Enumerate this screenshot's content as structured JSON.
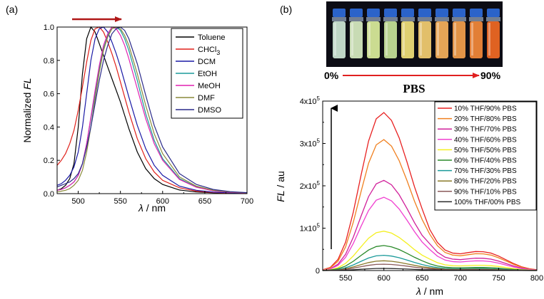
{
  "panel_a_label": "(a)",
  "panel_b_label": "(b)",
  "photo": {
    "left_label": "0%",
    "right_label": "90%",
    "caption": "PBS",
    "vial_colors": [
      "#cfe8d6",
      "#d9eec2",
      "#dcef9c",
      "#c8e49a",
      "#f2e27a",
      "#f5cf72",
      "#f7b25c",
      "#f5a14c",
      "#f58a3a",
      "#f26a24"
    ]
  },
  "chart_data": [
    {
      "type": "line",
      "title": "",
      "xlabel_symbol": "λ",
      "xlabel_unit": " / nm",
      "ylabel_text": "Normalized ",
      "ylabel_italic": "FL",
      "xlim": [
        475,
        700
      ],
      "ylim": [
        0,
        1.0
      ],
      "xticks": [
        "500",
        "550",
        "600",
        "650",
        "700"
      ],
      "xtick_values": [
        500,
        550,
        600,
        650,
        700
      ],
      "yticks": [
        "0.0",
        "0.2",
        "0.4",
        "0.6",
        "0.8",
        "1.0"
      ],
      "ytick_values": [
        0,
        0.2,
        0.4,
        0.6,
        0.8,
        1.0
      ],
      "annotation": "red arrow pointing right (red-shift with polarity)",
      "series": [
        {
          "name": "Toluene",
          "color": "#000000",
          "x": [
            475,
            480,
            485,
            490,
            495,
            500,
            505,
            510,
            515,
            520,
            525,
            530,
            535,
            540,
            545,
            550,
            555,
            560,
            570,
            580,
            590,
            600,
            620,
            640,
            660,
            680,
            700
          ],
          "y": [
            0.02,
            0.03,
            0.05,
            0.09,
            0.18,
            0.4,
            0.72,
            0.93,
            1.0,
            0.97,
            0.9,
            0.83,
            0.76,
            0.69,
            0.62,
            0.55,
            0.47,
            0.39,
            0.25,
            0.15,
            0.09,
            0.055,
            0.022,
            0.01,
            0.005,
            0.003,
            0.002
          ]
        },
        {
          "name": "CHCl3",
          "display": "CHCl",
          "sub": "3",
          "color": "#e0201a",
          "x": [
            475,
            480,
            485,
            490,
            495,
            500,
            505,
            510,
            515,
            520,
            525,
            530,
            535,
            540,
            545,
            550,
            555,
            560,
            570,
            580,
            590,
            600,
            620,
            640,
            660,
            680,
            700
          ],
          "y": [
            0.17,
            0.2,
            0.24,
            0.3,
            0.38,
            0.5,
            0.64,
            0.79,
            0.92,
            0.99,
            1.0,
            0.97,
            0.91,
            0.84,
            0.76,
            0.67,
            0.58,
            0.49,
            0.33,
            0.21,
            0.13,
            0.08,
            0.035,
            0.015,
            0.007,
            0.004,
            0.002
          ]
        },
        {
          "name": "DCM",
          "color": "#1a1aa6",
          "x": [
            475,
            480,
            485,
            490,
            495,
            500,
            505,
            510,
            515,
            520,
            525,
            530,
            535,
            540,
            545,
            550,
            555,
            560,
            570,
            580,
            590,
            600,
            620,
            640,
            660,
            680,
            700
          ],
          "y": [
            0.05,
            0.06,
            0.08,
            0.11,
            0.16,
            0.25,
            0.4,
            0.6,
            0.8,
            0.93,
            0.99,
            1.0,
            0.97,
            0.91,
            0.84,
            0.76,
            0.67,
            0.58,
            0.41,
            0.27,
            0.17,
            0.11,
            0.045,
            0.02,
            0.009,
            0.005,
            0.003
          ]
        },
        {
          "name": "EtOH",
          "color": "#1a9a9a",
          "x": [
            475,
            480,
            485,
            490,
            495,
            500,
            505,
            510,
            515,
            520,
            525,
            530,
            535,
            540,
            545,
            550,
            555,
            560,
            570,
            580,
            590,
            600,
            620,
            640,
            660,
            680,
            700
          ],
          "y": [
            0.02,
            0.025,
            0.035,
            0.05,
            0.07,
            0.11,
            0.18,
            0.3,
            0.45,
            0.6,
            0.75,
            0.87,
            0.95,
            0.99,
            1.0,
            0.98,
            0.93,
            0.86,
            0.68,
            0.48,
            0.32,
            0.21,
            0.09,
            0.04,
            0.018,
            0.009,
            0.005
          ]
        },
        {
          "name": "MeOH",
          "color": "#e020b0",
          "x": [
            475,
            480,
            485,
            490,
            495,
            500,
            505,
            510,
            515,
            520,
            525,
            530,
            535,
            540,
            545,
            550,
            555,
            560,
            570,
            580,
            590,
            600,
            620,
            640,
            660,
            680,
            700
          ],
          "y": [
            0.02,
            0.025,
            0.035,
            0.05,
            0.07,
            0.11,
            0.18,
            0.3,
            0.46,
            0.62,
            0.77,
            0.89,
            0.96,
            1.0,
            0.99,
            0.95,
            0.89,
            0.81,
            0.63,
            0.45,
            0.3,
            0.2,
            0.085,
            0.038,
            0.017,
            0.008,
            0.004
          ]
        },
        {
          "name": "DMF",
          "color": "#8a8a3a",
          "x": [
            475,
            480,
            485,
            490,
            495,
            500,
            505,
            510,
            515,
            520,
            525,
            530,
            535,
            540,
            545,
            550,
            555,
            560,
            570,
            580,
            590,
            600,
            620,
            640,
            660,
            680,
            700
          ],
          "y": [
            0.01,
            0.015,
            0.02,
            0.03,
            0.05,
            0.08,
            0.14,
            0.25,
            0.4,
            0.57,
            0.73,
            0.86,
            0.94,
            0.99,
            1.0,
            0.99,
            0.95,
            0.89,
            0.72,
            0.53,
            0.36,
            0.24,
            0.1,
            0.045,
            0.02,
            0.01,
            0.005
          ]
        },
        {
          "name": "DMSO",
          "color": "#2a2a8a",
          "x": [
            475,
            480,
            485,
            490,
            495,
            500,
            505,
            510,
            515,
            520,
            525,
            530,
            535,
            540,
            545,
            550,
            555,
            560,
            570,
            580,
            590,
            600,
            620,
            640,
            660,
            680,
            700
          ],
          "y": [
            0.04,
            0.05,
            0.06,
            0.07,
            0.09,
            0.12,
            0.18,
            0.28,
            0.4,
            0.54,
            0.68,
            0.8,
            0.89,
            0.96,
            0.99,
            1.0,
            0.98,
            0.93,
            0.78,
            0.59,
            0.41,
            0.28,
            0.12,
            0.055,
            0.025,
            0.012,
            0.006
          ]
        }
      ]
    },
    {
      "type": "line",
      "title": "",
      "xlabel_symbol": "λ",
      "xlabel_unit": " / nm",
      "ylabel_italic": "FL",
      "ylabel_text": " / au",
      "xlim": [
        520,
        800
      ],
      "ylim": [
        0,
        400000
      ],
      "xticks": [
        "550",
        "600",
        "650",
        "700",
        "750",
        "800"
      ],
      "xtick_values": [
        550,
        600,
        650,
        700,
        750,
        800
      ],
      "ytick_values": [
        0,
        100000,
        200000,
        300000,
        400000
      ],
      "ytick_labels": [
        {
          "base": "0",
          "exp": ""
        },
        {
          "base": "1x10",
          "exp": "5"
        },
        {
          "base": "2x10",
          "exp": "5"
        },
        {
          "base": "3x10",
          "exp": "5"
        },
        {
          "base": "4x10",
          "exp": "5"
        }
      ],
      "annotation": "black arrow pointing up (increasing THF fraction)",
      "shape_x": [
        520,
        530,
        540,
        550,
        560,
        570,
        580,
        590,
        600,
        610,
        620,
        630,
        640,
        650,
        660,
        670,
        680,
        690,
        700,
        710,
        720,
        730,
        740,
        750,
        760,
        770,
        780,
        790,
        800
      ],
      "shape_y": [
        0.005,
        0.02,
        0.07,
        0.18,
        0.37,
        0.6,
        0.82,
        0.96,
        1.0,
        0.95,
        0.84,
        0.69,
        0.53,
        0.39,
        0.27,
        0.185,
        0.135,
        0.115,
        0.11,
        0.118,
        0.125,
        0.124,
        0.115,
        0.095,
        0.07,
        0.045,
        0.025,
        0.012,
        0.005
      ],
      "series": [
        {
          "name": "10% THF/90% PBS",
          "color": "#e82020",
          "peak": 373000,
          "shoulder": 43000
        },
        {
          "name": "20% THF/80% PBS",
          "color": "#f08020",
          "peak": 309000,
          "shoulder": 38000
        },
        {
          "name": "30% THF/70% PBS",
          "color": "#d0209a",
          "peak": 213000,
          "shoulder": 28000
        },
        {
          "name": "40% THF/60% PBS",
          "color": "#f040d0",
          "peak": 173000,
          "shoulder": 22000
        },
        {
          "name": "50% THF/50% PBS",
          "color": "#f4f020",
          "peak": 93000,
          "shoulder": 12000
        },
        {
          "name": "60% THF/40% PBS",
          "color": "#2a8a2a",
          "peak": 59000,
          "shoulder": 7000
        },
        {
          "name": "70% THF/30% PBS",
          "color": "#1a9a9a",
          "peak": 36000,
          "shoulder": 4500
        },
        {
          "name": "80% THF/20% PBS",
          "color": "#8a7a2a",
          "peak": 23000,
          "shoulder": 3000
        },
        {
          "name": "90% THF/10% PBS",
          "color": "#8a5a5a",
          "peak": 15000,
          "shoulder": 2000
        },
        {
          "name": "100% THF/00% PBS",
          "color": "#2a2a2a",
          "peak": 5000,
          "shoulder": 800
        }
      ]
    }
  ]
}
